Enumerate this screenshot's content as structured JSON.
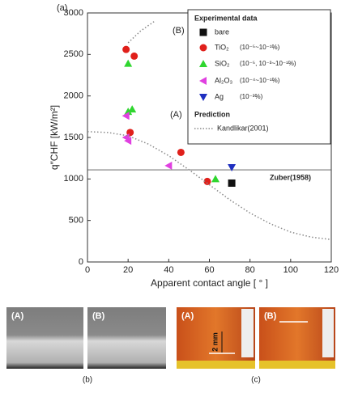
{
  "chart_data": {
    "type": "scatter",
    "xlabel": "Apparent contact angle [ ° ]",
    "ylabel": "q″CHF [kW/m²]",
    "xlim": [
      0,
      120
    ],
    "xticks": [
      0,
      20,
      40,
      60,
      80,
      100,
      120
    ],
    "ylim": [
      0,
      3000
    ],
    "yticks": [
      0,
      500,
      1000,
      1500,
      2000,
      2500,
      3000
    ],
    "legend_title": "Experimental data",
    "prediction_label": "Prediction",
    "annotations": [
      "(a)",
      "(A)",
      "(B)"
    ],
    "reference_line": {
      "label": "Zuber(1958)",
      "value": 1110
    },
    "series": [
      {
        "name": "bare",
        "marker": "square",
        "color": "#111111",
        "x": [
          71
        ],
        "values": [
          950
        ]
      },
      {
        "name": "TiO₂",
        "concentration": "(10⁻⁵~10⁻¹%)",
        "marker": "circle",
        "color": "#e0201b",
        "x": [
          19,
          23,
          21,
          46,
          59
        ],
        "values": [
          2560,
          2480,
          1560,
          1320,
          970
        ]
      },
      {
        "name": "SiO₂",
        "concentration": "(10⁻⁵, 10⁻³~10⁻¹%)",
        "marker": "triangle-up",
        "color": "#2fd62f",
        "x": [
          20,
          22,
          20,
          63
        ],
        "values": [
          2390,
          1840,
          1810,
          1000
        ]
      },
      {
        "name": "Al₂O₃",
        "concentration": "(10⁻⁴~10⁻¹%)",
        "marker": "triangle-left",
        "color": "#e040e0",
        "x": [
          19,
          19,
          20,
          40
        ],
        "values": [
          1760,
          1500,
          1460,
          1160
        ]
      },
      {
        "name": "Ag",
        "concentration": "(10⁻³%)",
        "marker": "triangle-down",
        "color": "#1f2fc0",
        "x": [
          71
        ],
        "values": [
          1140
        ]
      },
      {
        "name": "Kandlikar(2001)",
        "marker": "dotted-line",
        "color": "#8a8a8a",
        "x": [
          0,
          10,
          20,
          30,
          40,
          50,
          60,
          70,
          80,
          90,
          100,
          110,
          120,
          20,
          20,
          26,
          33
        ],
        "values": [
          1570,
          1560,
          1520,
          1420,
          1280,
          1110,
          930,
          750,
          590,
          460,
          360,
          300,
          270,
          null,
          2640,
          2780,
          2900
        ]
      }
    ]
  },
  "panels": {
    "b": {
      "label": "(b)",
      "images": [
        "(A)",
        "(B)"
      ]
    },
    "c": {
      "label": "(c)",
      "images": [
        "(A)",
        "(B)"
      ],
      "scale": "2 mm"
    }
  }
}
